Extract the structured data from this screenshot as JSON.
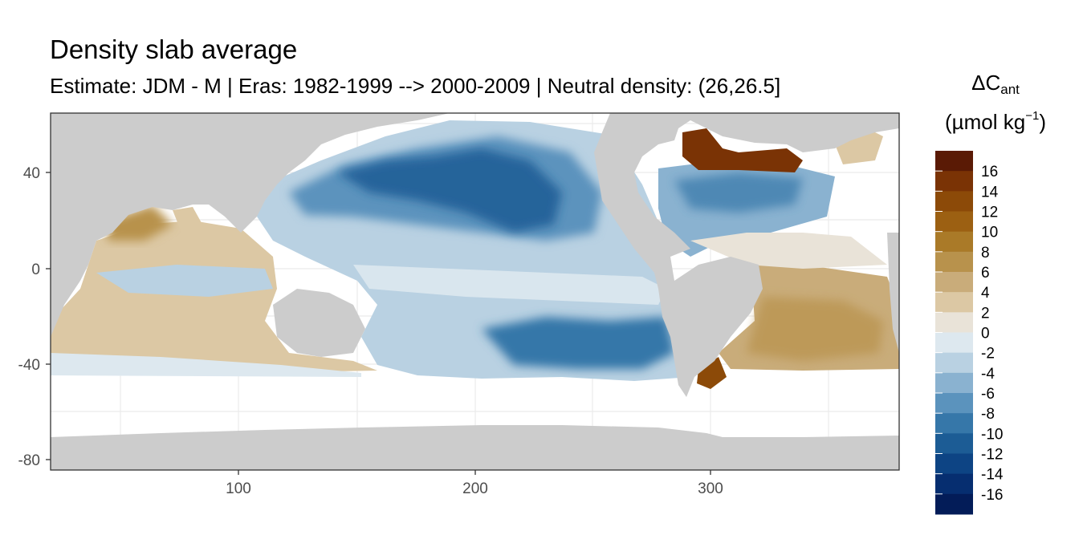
{
  "title": "Density slab average",
  "subtitle": "Estimate: JDM - M | Eras: 1982-1999 --> 2000-2009 | Neutral density: (26,26.5]",
  "legend": {
    "title_delta": "ΔC",
    "title_sub": "ant",
    "unit_open": "(µmol kg",
    "unit_sup": "−1",
    "unit_close": ")",
    "labels": [
      "16",
      "14",
      "12",
      "10",
      "8",
      "6",
      "4",
      "2",
      "0",
      "-2",
      "-4",
      "-6",
      "-8",
      "-10",
      "-12",
      "-14",
      "-16"
    ],
    "colors": [
      "#5a1a05",
      "#7a3305",
      "#8c4a08",
      "#9c6012",
      "#aa7a28",
      "#b8924c",
      "#c9ac7a",
      "#dcc8a4",
      "#e9e3d8",
      "#dde8ef",
      "#b9d1e2",
      "#8ab2d0",
      "#5b93bd",
      "#3677a9",
      "#1c5c95",
      "#0d4484",
      "#062e70",
      "#031c58"
    ]
  },
  "axes": {
    "x_ticks": [
      "100",
      "200",
      "300"
    ],
    "y_ticks": [
      "40",
      "0",
      "-40",
      "-80"
    ]
  }
}
